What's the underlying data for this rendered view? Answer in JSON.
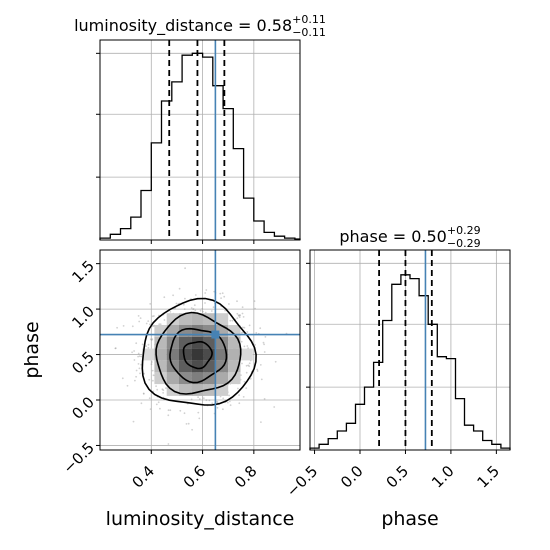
{
  "chart_data": {
    "type": "corner",
    "parameters": [
      "luminosity_distance",
      "phase"
    ],
    "truths": {
      "luminosity_distance": 0.65,
      "phase": 0.72
    },
    "panels": [
      {
        "id": "hist-luminosity_distance",
        "type": "histogram",
        "title_param": "luminosity_distance",
        "title_value": "0.58",
        "title_plus": "+0.11",
        "title_minus": "−0.11",
        "xlim": [
          0.2,
          0.98
        ],
        "ylim": [
          0,
          1.05
        ],
        "bin_edges": [
          0.2,
          0.24,
          0.28,
          0.32,
          0.36,
          0.4,
          0.44,
          0.48,
          0.52,
          0.56,
          0.6,
          0.64,
          0.68,
          0.72,
          0.76,
          0.8,
          0.84,
          0.88,
          0.92,
          0.96,
          0.98
        ],
        "counts": [
          0.01,
          0.03,
          0.06,
          0.12,
          0.26,
          0.51,
          0.73,
          0.83,
          0.97,
          0.98,
          0.96,
          0.81,
          0.69,
          0.48,
          0.22,
          0.1,
          0.04,
          0.02,
          0.01,
          0.005
        ],
        "quantiles": [
          0.47,
          0.58,
          0.685
        ],
        "truth": 0.65,
        "grid": true
      },
      {
        "id": "hist-phase",
        "type": "histogram",
        "title_param": "phase",
        "title_value": "0.50",
        "title_plus": "+0.29",
        "title_minus": "−0.29",
        "xlim": [
          -0.55,
          1.65
        ],
        "ylim": [
          0,
          1.05
        ],
        "xticks": [
          -0.5,
          0.0,
          0.5,
          1.0,
          1.5
        ],
        "xticklabels": [
          "−0.5",
          "0.0",
          "0.5",
          "1.0",
          "1.5"
        ],
        "xlabel": "phase",
        "bin_edges": [
          -0.55,
          -0.45,
          -0.35,
          -0.25,
          -0.15,
          -0.05,
          0.05,
          0.15,
          0.25,
          0.35,
          0.45,
          0.55,
          0.65,
          0.75,
          0.85,
          0.95,
          1.05,
          1.15,
          1.25,
          1.35,
          1.45,
          1.55,
          1.65
        ],
        "counts": [
          0.01,
          0.03,
          0.06,
          0.1,
          0.14,
          0.24,
          0.33,
          0.46,
          0.68,
          0.87,
          0.92,
          0.9,
          0.81,
          0.66,
          0.49,
          0.48,
          0.27,
          0.13,
          0.1,
          0.05,
          0.03,
          0.01
        ],
        "quantiles": [
          0.21,
          0.5,
          0.79
        ],
        "truth": 0.72,
        "grid": true
      },
      {
        "id": "scatter-2d",
        "type": "2d-density",
        "x_param": "luminosity_distance",
        "y_param": "phase",
        "xlim": [
          0.2,
          0.98
        ],
        "ylim": [
          -0.55,
          1.65
        ],
        "xticks": [
          0.4,
          0.6,
          0.8
        ],
        "xticklabels": [
          "0.4",
          "0.6",
          "0.8"
        ],
        "yticks": [
          -0.5,
          0.0,
          0.5,
          1.0,
          1.5
        ],
        "yticklabels": [
          "−0.5",
          "0.0",
          "0.5",
          "1.0",
          "1.5"
        ],
        "xlabel": "luminosity_distance",
        "ylabel": "phase",
        "center": [
          0.58,
          0.5
        ],
        "sigma": [
          0.11,
          0.29
        ],
        "truth": [
          0.65,
          0.72
        ],
        "grid": true
      }
    ]
  }
}
